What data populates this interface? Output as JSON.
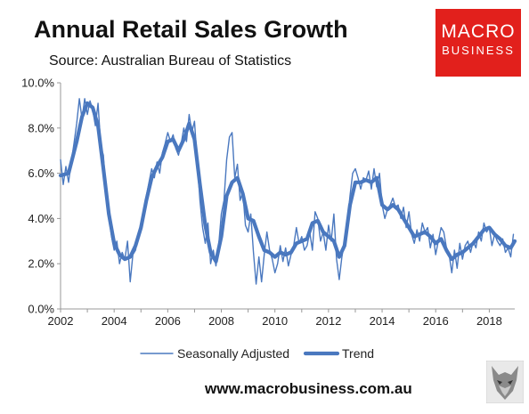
{
  "header": {
    "title": "Annual Retail Sales Growth",
    "subtitle": "Source: Australian Bureau of Statistics",
    "logo_line1": "MACRO",
    "logo_line2": "BUSINESS"
  },
  "footer": {
    "website": "www.macrobusiness.com.au"
  },
  "colors": {
    "seasonal": "#4a78bf",
    "trend": "#4a78bf",
    "logo_bg": "#e2201c",
    "axis": "#999999"
  },
  "icons": {
    "logo": "macrobusiness-logo",
    "wolf": "wolf-head-icon"
  },
  "chart_data": {
    "type": "line",
    "title": "Annual Retail Sales Growth",
    "xlabel": "",
    "ylabel": "",
    "xlim": [
      2002,
      2018.95
    ],
    "ylim": [
      0,
      10
    ],
    "grid": false,
    "legend_placement": "bottom",
    "x_ticks": [
      2002,
      2004,
      2006,
      2008,
      2010,
      2012,
      2014,
      2016,
      2018
    ],
    "x_tick_labels": [
      "2002",
      "2004",
      "2006",
      "2008",
      "2010",
      "2012",
      "2014",
      "2016",
      "2018"
    ],
    "y_ticks": [
      0,
      2,
      4,
      6,
      8,
      10
    ],
    "y_tick_labels": [
      "0.0%",
      "2.0%",
      "4.0%",
      "6.0%",
      "8.0%",
      "10.0%"
    ],
    "series": [
      {
        "name": "Seasonally Adjusted",
        "style": "thin",
        "points": [
          [
            2002.0,
            6.6
          ],
          [
            2002.1,
            5.5
          ],
          [
            2002.2,
            6.3
          ],
          [
            2002.3,
            5.6
          ],
          [
            2002.4,
            6.5
          ],
          [
            2002.5,
            7.3
          ],
          [
            2002.6,
            8.2
          ],
          [
            2002.7,
            9.3
          ],
          [
            2002.8,
            8.4
          ],
          [
            2002.9,
            9.3
          ],
          [
            2003.0,
            8.6
          ],
          [
            2003.1,
            9.2
          ],
          [
            2003.2,
            8.8
          ],
          [
            2003.3,
            8.1
          ],
          [
            2003.4,
            9.1
          ],
          [
            2003.5,
            7.2
          ],
          [
            2003.6,
            6.8
          ],
          [
            2003.7,
            5.0
          ],
          [
            2003.8,
            4.1
          ],
          [
            2003.9,
            3.2
          ],
          [
            2004.0,
            2.6
          ],
          [
            2004.1,
            3.0
          ],
          [
            2004.2,
            2.0
          ],
          [
            2004.3,
            2.5
          ],
          [
            2004.4,
            2.2
          ],
          [
            2004.5,
            3.0
          ],
          [
            2004.6,
            1.2
          ],
          [
            2004.7,
            2.4
          ],
          [
            2004.8,
            2.6
          ],
          [
            2004.9,
            3.2
          ],
          [
            2005.0,
            3.6
          ],
          [
            2005.1,
            4.2
          ],
          [
            2005.2,
            5.0
          ],
          [
            2005.3,
            5.6
          ],
          [
            2005.4,
            6.2
          ],
          [
            2005.5,
            5.8
          ],
          [
            2005.6,
            6.5
          ],
          [
            2005.7,
            6.0
          ],
          [
            2005.8,
            6.9
          ],
          [
            2005.9,
            7.3
          ],
          [
            2006.0,
            7.8
          ],
          [
            2006.1,
            7.4
          ],
          [
            2006.2,
            7.7
          ],
          [
            2006.3,
            7.1
          ],
          [
            2006.4,
            6.8
          ],
          [
            2006.5,
            7.3
          ],
          [
            2006.6,
            8.0
          ],
          [
            2006.7,
            7.4
          ],
          [
            2006.8,
            8.6
          ],
          [
            2006.9,
            7.8
          ],
          [
            2007.0,
            8.3
          ],
          [
            2007.1,
            6.5
          ],
          [
            2007.2,
            4.8
          ],
          [
            2007.3,
            3.6
          ],
          [
            2007.4,
            2.9
          ],
          [
            2007.5,
            3.8
          ],
          [
            2007.6,
            2.0
          ],
          [
            2007.7,
            2.6
          ],
          [
            2007.8,
            1.9
          ],
          [
            2007.9,
            2.8
          ],
          [
            2008.0,
            4.2
          ],
          [
            2008.1,
            4.8
          ],
          [
            2008.2,
            6.6
          ],
          [
            2008.3,
            7.6
          ],
          [
            2008.4,
            7.8
          ],
          [
            2008.5,
            5.8
          ],
          [
            2008.6,
            6.4
          ],
          [
            2008.7,
            4.8
          ],
          [
            2008.8,
            5.2
          ],
          [
            2008.9,
            3.7
          ],
          [
            2009.0,
            3.4
          ],
          [
            2009.1,
            4.2
          ],
          [
            2009.2,
            2.5
          ],
          [
            2009.3,
            1.1
          ],
          [
            2009.4,
            2.3
          ],
          [
            2009.5,
            1.2
          ],
          [
            2009.6,
            2.4
          ],
          [
            2009.7,
            3.4
          ],
          [
            2009.8,
            2.6
          ],
          [
            2009.9,
            2.2
          ],
          [
            2010.0,
            1.6
          ],
          [
            2010.1,
            2.0
          ],
          [
            2010.2,
            2.8
          ],
          [
            2010.3,
            2.1
          ],
          [
            2010.4,
            2.7
          ],
          [
            2010.5,
            1.9
          ],
          [
            2010.6,
            2.4
          ],
          [
            2010.7,
            2.8
          ],
          [
            2010.8,
            3.6
          ],
          [
            2010.9,
            2.9
          ],
          [
            2011.0,
            3.2
          ],
          [
            2011.1,
            2.6
          ],
          [
            2011.2,
            2.8
          ],
          [
            2011.3,
            3.4
          ],
          [
            2011.4,
            2.6
          ],
          [
            2011.5,
            4.3
          ],
          [
            2011.6,
            4.0
          ],
          [
            2011.7,
            3.0
          ],
          [
            2011.8,
            3.4
          ],
          [
            2011.9,
            2.6
          ],
          [
            2012.0,
            3.7
          ],
          [
            2012.1,
            3.0
          ],
          [
            2012.2,
            4.2
          ],
          [
            2012.3,
            2.2
          ],
          [
            2012.4,
            1.3
          ],
          [
            2012.5,
            2.3
          ],
          [
            2012.6,
            3.0
          ],
          [
            2012.7,
            3.8
          ],
          [
            2012.8,
            5.0
          ],
          [
            2012.9,
            6.0
          ],
          [
            2013.0,
            6.2
          ],
          [
            2013.1,
            5.8
          ],
          [
            2013.2,
            5.3
          ],
          [
            2013.3,
            5.8
          ],
          [
            2013.4,
            5.7
          ],
          [
            2013.5,
            6.1
          ],
          [
            2013.6,
            5.3
          ],
          [
            2013.7,
            6.2
          ],
          [
            2013.8,
            5.4
          ],
          [
            2013.9,
            6.0
          ],
          [
            2014.0,
            4.6
          ],
          [
            2014.1,
            4.0
          ],
          [
            2014.2,
            4.4
          ],
          [
            2014.3,
            4.6
          ],
          [
            2014.4,
            4.9
          ],
          [
            2014.5,
            4.5
          ],
          [
            2014.6,
            4.6
          ],
          [
            2014.7,
            4.0
          ],
          [
            2014.8,
            4.5
          ],
          [
            2014.9,
            3.6
          ],
          [
            2015.0,
            4.3
          ],
          [
            2015.1,
            3.3
          ],
          [
            2015.2,
            2.9
          ],
          [
            2015.3,
            3.5
          ],
          [
            2015.4,
            3.0
          ],
          [
            2015.5,
            3.8
          ],
          [
            2015.6,
            3.4
          ],
          [
            2015.7,
            3.6
          ],
          [
            2015.8,
            2.7
          ],
          [
            2015.9,
            3.3
          ],
          [
            2016.0,
            2.4
          ],
          [
            2016.1,
            3.0
          ],
          [
            2016.2,
            3.6
          ],
          [
            2016.3,
            3.4
          ],
          [
            2016.4,
            2.7
          ],
          [
            2016.5,
            2.4
          ],
          [
            2016.6,
            1.6
          ],
          [
            2016.7,
            2.6
          ],
          [
            2016.8,
            1.8
          ],
          [
            2016.9,
            2.9
          ],
          [
            2017.0,
            2.2
          ],
          [
            2017.1,
            2.8
          ],
          [
            2017.2,
            3.0
          ],
          [
            2017.3,
            2.5
          ],
          [
            2017.4,
            3.0
          ],
          [
            2017.5,
            2.7
          ],
          [
            2017.6,
            3.4
          ],
          [
            2017.7,
            3.0
          ],
          [
            2017.8,
            3.8
          ],
          [
            2017.9,
            3.4
          ],
          [
            2018.0,
            3.6
          ],
          [
            2018.1,
            2.8
          ],
          [
            2018.2,
            3.3
          ],
          [
            2018.3,
            3.0
          ],
          [
            2018.4,
            2.8
          ],
          [
            2018.5,
            3.1
          ],
          [
            2018.6,
            2.5
          ],
          [
            2018.7,
            2.7
          ],
          [
            2018.8,
            2.3
          ],
          [
            2018.9,
            3.3
          ]
        ]
      },
      {
        "name": "Trend",
        "style": "thick",
        "points": [
          [
            2002.0,
            5.9
          ],
          [
            2002.3,
            6.0
          ],
          [
            2002.6,
            7.4
          ],
          [
            2002.8,
            8.5
          ],
          [
            2003.0,
            9.1
          ],
          [
            2003.2,
            8.9
          ],
          [
            2003.4,
            8.1
          ],
          [
            2003.6,
            6.2
          ],
          [
            2003.8,
            4.2
          ],
          [
            2004.0,
            2.9
          ],
          [
            2004.2,
            2.4
          ],
          [
            2004.4,
            2.2
          ],
          [
            2004.6,
            2.3
          ],
          [
            2004.8,
            2.8
          ],
          [
            2005.0,
            3.6
          ],
          [
            2005.2,
            4.8
          ],
          [
            2005.4,
            5.8
          ],
          [
            2005.6,
            6.3
          ],
          [
            2005.8,
            6.7
          ],
          [
            2006.0,
            7.4
          ],
          [
            2006.2,
            7.5
          ],
          [
            2006.4,
            7.0
          ],
          [
            2006.6,
            7.5
          ],
          [
            2006.8,
            8.2
          ],
          [
            2007.0,
            7.5
          ],
          [
            2007.2,
            5.5
          ],
          [
            2007.4,
            3.7
          ],
          [
            2007.6,
            2.5
          ],
          [
            2007.8,
            2.1
          ],
          [
            2008.0,
            3.2
          ],
          [
            2008.2,
            5.0
          ],
          [
            2008.4,
            5.6
          ],
          [
            2008.6,
            5.8
          ],
          [
            2008.8,
            5.1
          ],
          [
            2009.0,
            4.0
          ],
          [
            2009.2,
            3.9
          ],
          [
            2009.4,
            3.2
          ],
          [
            2009.6,
            2.6
          ],
          [
            2009.8,
            2.5
          ],
          [
            2010.0,
            2.3
          ],
          [
            2010.2,
            2.5
          ],
          [
            2010.4,
            2.4
          ],
          [
            2010.6,
            2.5
          ],
          [
            2010.8,
            2.9
          ],
          [
            2011.0,
            3.0
          ],
          [
            2011.2,
            3.1
          ],
          [
            2011.4,
            3.8
          ],
          [
            2011.6,
            3.9
          ],
          [
            2011.8,
            3.4
          ],
          [
            2012.0,
            3.2
          ],
          [
            2012.2,
            3.0
          ],
          [
            2012.4,
            2.3
          ],
          [
            2012.6,
            2.8
          ],
          [
            2012.8,
            4.6
          ],
          [
            2013.0,
            5.6
          ],
          [
            2013.2,
            5.6
          ],
          [
            2013.4,
            5.7
          ],
          [
            2013.6,
            5.6
          ],
          [
            2013.8,
            5.8
          ],
          [
            2014.0,
            4.6
          ],
          [
            2014.2,
            4.4
          ],
          [
            2014.4,
            4.6
          ],
          [
            2014.6,
            4.4
          ],
          [
            2014.8,
            4.0
          ],
          [
            2015.0,
            3.6
          ],
          [
            2015.2,
            3.2
          ],
          [
            2015.4,
            3.3
          ],
          [
            2015.6,
            3.4
          ],
          [
            2015.8,
            3.2
          ],
          [
            2016.0,
            2.9
          ],
          [
            2016.2,
            3.1
          ],
          [
            2016.4,
            2.6
          ],
          [
            2016.6,
            2.2
          ],
          [
            2016.8,
            2.4
          ],
          [
            2017.0,
            2.5
          ],
          [
            2017.2,
            2.7
          ],
          [
            2017.4,
            2.9
          ],
          [
            2017.6,
            3.2
          ],
          [
            2017.8,
            3.5
          ],
          [
            2018.0,
            3.6
          ],
          [
            2018.2,
            3.3
          ],
          [
            2018.4,
            3.1
          ],
          [
            2018.6,
            2.8
          ],
          [
            2018.8,
            2.7
          ],
          [
            2018.95,
            3.0
          ]
        ]
      }
    ]
  }
}
